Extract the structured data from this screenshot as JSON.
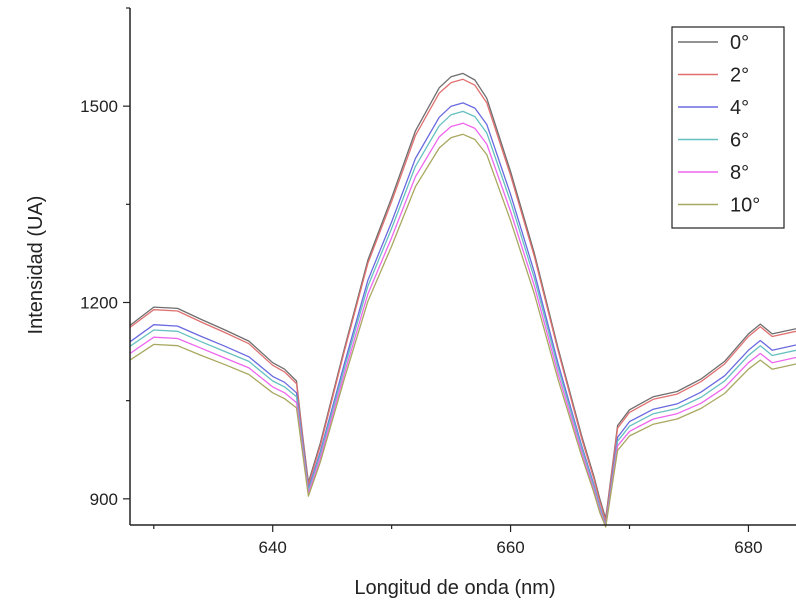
{
  "chart_data": {
    "type": "line",
    "title": "",
    "xlabel": "Longitud de onda (nm)",
    "ylabel": "Intensidad (UA)",
    "xlim": [
      628,
      684
    ],
    "ylim": [
      860,
      1650
    ],
    "xticks": [
      640,
      660,
      680
    ],
    "yticks": [
      900,
      1200,
      1500
    ],
    "grid": false,
    "legend_position": "top-right",
    "x": [
      628,
      630,
      632,
      634,
      636,
      638,
      640,
      641,
      642,
      642.5,
      643,
      644,
      646,
      648,
      650,
      652,
      654,
      655,
      656,
      657,
      658,
      660,
      662,
      664,
      666,
      667,
      667.5,
      668,
      669,
      670,
      672,
      674,
      676,
      678,
      680,
      681,
      682,
      684
    ],
    "series": [
      {
        "name": "0°",
        "color": "#6e6e6e",
        "values": [
          1165,
          1193,
          1191,
          1174,
          1158,
          1141,
          1108,
          1098,
          1080,
          1000,
          925,
          985,
          1128,
          1265,
          1360,
          1462,
          1528,
          1545,
          1550,
          1540,
          1512,
          1400,
          1275,
          1130,
          995,
          935,
          900,
          870,
          1012,
          1036,
          1056,
          1064,
          1083,
          1110,
          1152,
          1167,
          1152,
          1160
        ]
      },
      {
        "name": "2°",
        "color": "#e07070",
        "values": [
          1162,
          1189,
          1187,
          1170,
          1154,
          1137,
          1104,
          1094,
          1076,
          996,
          921,
          981,
          1124,
          1260,
          1354,
          1455,
          1520,
          1536,
          1541,
          1532,
          1505,
          1394,
          1270,
          1126,
          991,
          931,
          896,
          866,
          1008,
          1032,
          1052,
          1060,
          1079,
          1106,
          1148,
          1163,
          1148,
          1156
        ]
      },
      {
        "name": "4°",
        "color": "#6a6ae0",
        "values": [
          1140,
          1166,
          1164,
          1148,
          1133,
          1117,
          1087,
          1078,
          1062,
          988,
          915,
          972,
          1105,
          1234,
          1323,
          1420,
          1483,
          1500,
          1505,
          1497,
          1472,
          1365,
          1246,
          1107,
          980,
          922,
          888,
          860,
          994,
          1018,
          1037,
          1045,
          1063,
          1088,
          1127,
          1142,
          1127,
          1135
        ]
      },
      {
        "name": "6°",
        "color": "#66c0c0",
        "values": [
          1133,
          1158,
          1156,
          1140,
          1125,
          1110,
          1080,
          1071,
          1056,
          984,
          912,
          968,
          1098,
          1225,
          1313,
          1408,
          1470,
          1487,
          1492,
          1484,
          1459,
          1354,
          1237,
          1100,
          976,
          919,
          886,
          859,
          988,
          1011,
          1030,
          1038,
          1055,
          1080,
          1119,
          1134,
          1119,
          1127
        ]
      },
      {
        "name": "8°",
        "color": "#ee66ee",
        "values": [
          1122,
          1147,
          1145,
          1130,
          1115,
          1100,
          1071,
          1062,
          1047,
          978,
          908,
          962,
          1090,
          1213,
          1299,
          1392,
          1453,
          1469,
          1474,
          1466,
          1442,
          1339,
          1225,
          1091,
          970,
          914,
          882,
          858,
          981,
          1003,
          1022,
          1030,
          1046,
          1070,
          1108,
          1122,
          1108,
          1116
        ]
      },
      {
        "name": "10°",
        "color": "#a8a860",
        "values": [
          1112,
          1136,
          1134,
          1119,
          1105,
          1090,
          1062,
          1053,
          1039,
          972,
          904,
          956,
          1082,
          1202,
          1286,
          1377,
          1436,
          1452,
          1457,
          1449,
          1426,
          1325,
          1213,
          1082,
          964,
          910,
          879,
          857,
          974,
          996,
          1014,
          1022,
          1038,
          1061,
          1098,
          1112,
          1098,
          1106
        ]
      }
    ]
  }
}
